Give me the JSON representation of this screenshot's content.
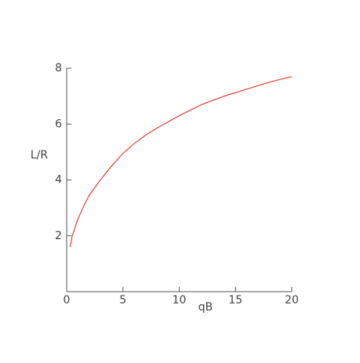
{
  "chart_data": {
    "type": "line",
    "x_label": "qB",
    "y_label": "L/R",
    "x": [
      0.3,
      0.5,
      1,
      1.5,
      2,
      3,
      4,
      5,
      6,
      7,
      8,
      10,
      12,
      14,
      16,
      18,
      20
    ],
    "series": [
      {
        "color": "#e0403a",
        "values": [
          1.6,
          2.0,
          2.6,
          3.05,
          3.45,
          4.0,
          4.5,
          4.95,
          5.3,
          5.6,
          5.85,
          6.3,
          6.7,
          7.0,
          7.25,
          7.5,
          7.7
        ]
      }
    ],
    "xlim": [
      0,
      20
    ],
    "ylim": [
      0,
      8
    ],
    "xticks": [
      0,
      5,
      10,
      15,
      20
    ],
    "yticks": [
      2,
      4,
      6,
      8
    ]
  }
}
